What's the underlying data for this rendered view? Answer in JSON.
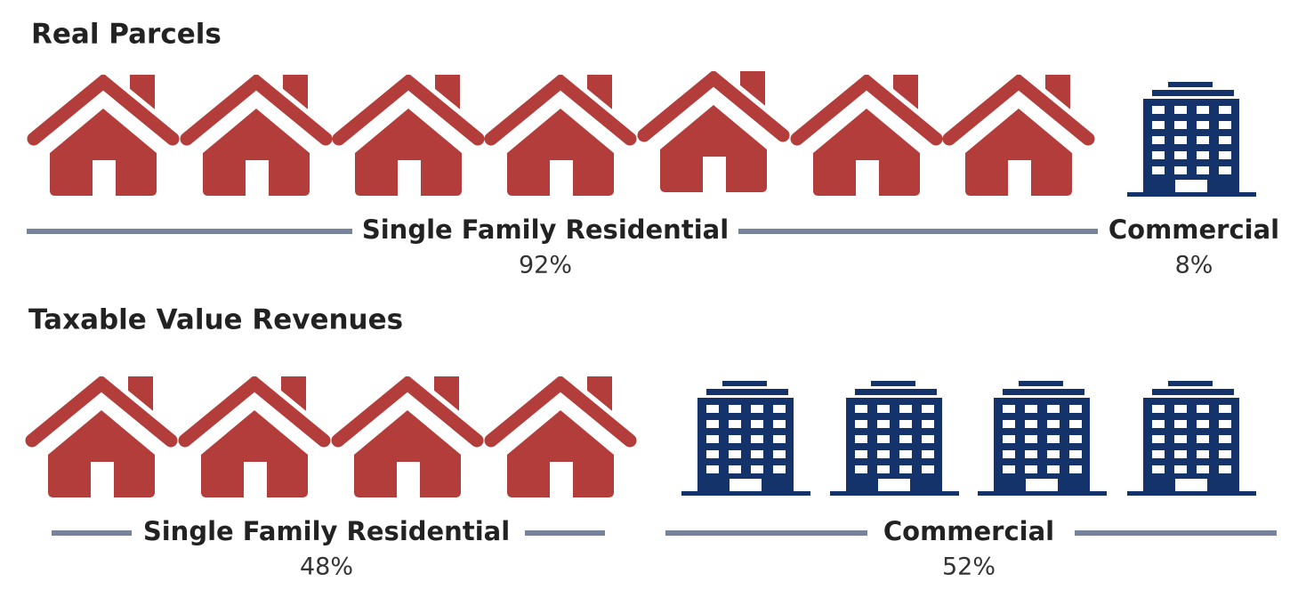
{
  "sections": [
    {
      "title": "Real Parcels",
      "groups": [
        {
          "label": "Single Family Residential",
          "share": "92%"
        },
        {
          "label": "Commercial",
          "share": "8%"
        }
      ]
    },
    {
      "title": "Taxable Value Revenues",
      "groups": [
        {
          "label": "Single Family Residential",
          "share": "48%"
        },
        {
          "label": "Commercial",
          "share": "52%"
        }
      ]
    }
  ]
}
